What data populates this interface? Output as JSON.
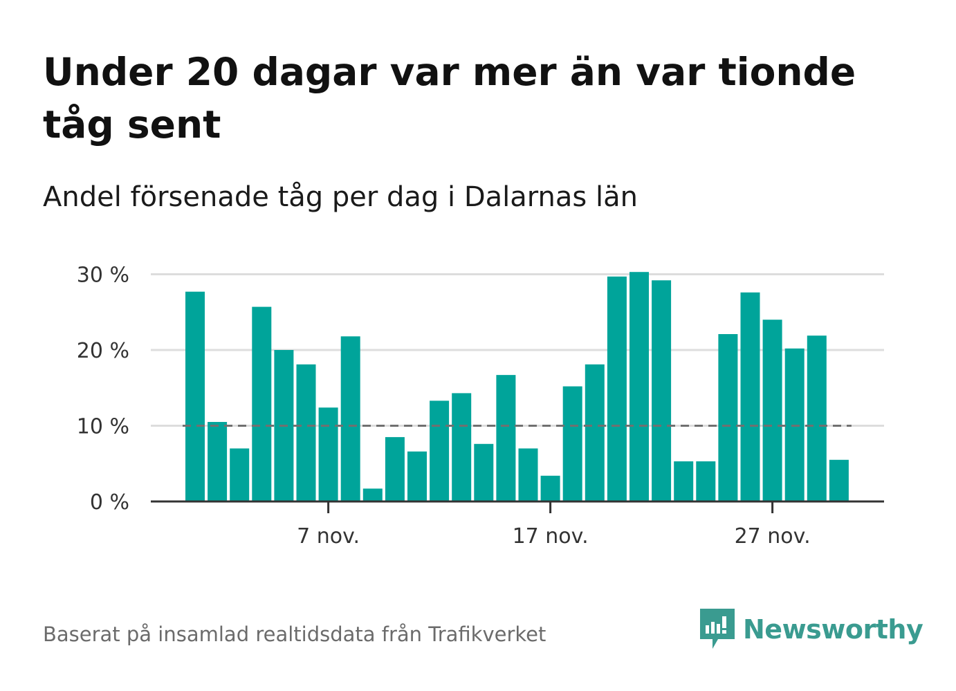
{
  "title": "Under 20 dagar var mer än var tionde tåg sent",
  "subtitle": "Andel försenade tåg per dag i Dalarnas län",
  "source": "Baserat på insamlad realtidsdata från Trafikverket",
  "brand": {
    "name": "Newsworthy",
    "logo_icon": "bar-chart-speech-bubble-icon",
    "color": "#3a9b90"
  },
  "colors": {
    "bar": "#00a49a",
    "reference_line": "#707070",
    "grid": "#dddddd",
    "axis": "#333333"
  },
  "chart_data": {
    "type": "bar",
    "title": "Under 20 dagar var mer än var tionde tåg sent",
    "subtitle": "Andel försenade tåg per dag i Dalarnas län",
    "x": [
      "2023-11-01",
      "2023-11-02",
      "2023-11-03",
      "2023-11-04",
      "2023-11-05",
      "2023-11-06",
      "2023-11-07",
      "2023-11-08",
      "2023-11-09",
      "2023-11-10",
      "2023-11-11",
      "2023-11-12",
      "2023-11-13",
      "2023-11-14",
      "2023-11-15",
      "2023-11-16",
      "2023-11-17",
      "2023-11-18",
      "2023-11-19",
      "2023-11-20",
      "2023-11-21",
      "2023-11-22",
      "2023-11-23",
      "2023-11-24",
      "2023-11-25",
      "2023-11-26",
      "2023-11-27",
      "2023-11-28",
      "2023-11-29",
      "2023-11-30"
    ],
    "values": [
      27.7,
      10.5,
      7.0,
      25.7,
      20.0,
      18.1,
      12.4,
      21.8,
      1.7,
      8.5,
      6.6,
      13.3,
      14.3,
      7.6,
      16.7,
      7.0,
      3.4,
      15.2,
      18.1,
      29.7,
      30.3,
      29.2,
      5.3,
      5.3,
      22.1,
      27.6,
      24.0,
      20.2,
      21.9,
      5.5
    ],
    "x_ticks": [
      "7 nov.",
      "17 nov.",
      "27 nov."
    ],
    "x_tick_index": [
      6,
      16,
      26
    ],
    "y_ticks": [
      "0 %",
      "10 %",
      "20 %",
      "30 %"
    ],
    "y_tick_values": [
      0,
      10,
      20,
      30
    ],
    "ylim": [
      0,
      30.5
    ],
    "reference_line": 10,
    "grid": true,
    "legend": "none"
  }
}
